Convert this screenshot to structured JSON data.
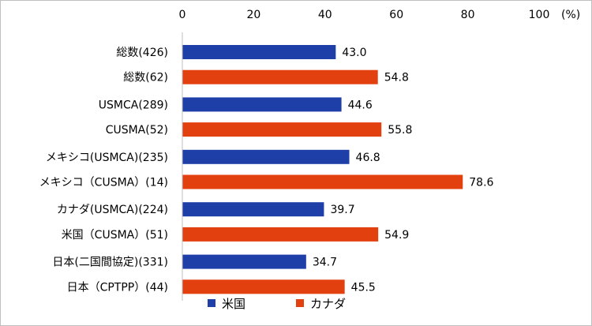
{
  "chart_data": {
    "type": "bar",
    "orientation": "horizontal",
    "unit_label": "(%)",
    "xlim": [
      0,
      100
    ],
    "x_ticks": [
      "0",
      "20",
      "40",
      "60",
      "80",
      "100"
    ],
    "grid": false,
    "legend_position": "bottom",
    "categories": [
      "総数(426)",
      "総数(62)",
      "USMCA(289)",
      "CUSMA(52)",
      "メキシコ(USMCA)(235)",
      "メキシコ（CUSMA）(14)",
      "カナダ(USMCA)(224)",
      "米国（CUSMA）(51)",
      "日本(二国間協定)(331)",
      "日本（CPTPP）(44)"
    ],
    "values": [
      43.0,
      54.8,
      44.6,
      55.8,
      46.8,
      78.6,
      39.7,
      54.9,
      34.7,
      45.5
    ],
    "value_labels": [
      "43.0",
      "54.8",
      "44.6",
      "55.8",
      "46.8",
      "78.6",
      "39.7",
      "54.9",
      "34.7",
      "45.5"
    ],
    "bar_series": [
      "米国",
      "カナダ",
      "米国",
      "カナダ",
      "米国",
      "カナダ",
      "米国",
      "カナダ",
      "米国",
      "カナダ"
    ],
    "series": [
      {
        "name": "米国",
        "color": "#1f3fa8"
      },
      {
        "name": "カナダ",
        "color": "#e3400f"
      }
    ]
  }
}
